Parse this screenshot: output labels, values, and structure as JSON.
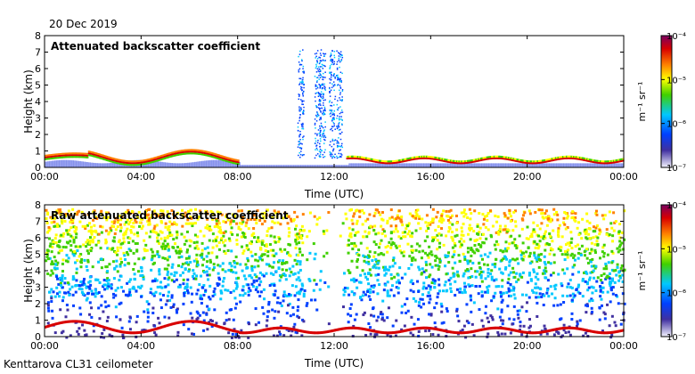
{
  "header": {
    "date": "20 Dec 2019"
  },
  "footer": {
    "site": "Kenttarova CL31 ceilometer"
  },
  "colorbar": {
    "unit_label": "m⁻¹ sr⁻¹",
    "ticks": [
      {
        "label": "10⁻⁴",
        "value": 0.0001
      },
      {
        "label": "10⁻⁵",
        "value": 1e-05
      },
      {
        "label": "10⁻⁶",
        "value": 1e-06
      },
      {
        "label": "10⁻⁷",
        "value": 1e-07
      }
    ],
    "colors": [
      "#7a0060",
      "#d80000",
      "#ff8000",
      "#ffff00",
      "#40d000",
      "#00c8ff",
      "#0040ff",
      "#4030a0",
      "#f4f4ff"
    ]
  },
  "chart_data": [
    {
      "type": "heatmap",
      "title": "Attenuated backscatter coefficient",
      "xlabel": "Time (UTC)",
      "ylabel": "Height (km)",
      "xlim": [
        "00:00",
        "24:00"
      ],
      "ylim": [
        0,
        8
      ],
      "x_ticks": [
        "00:00",
        "04:00",
        "08:00",
        "12:00",
        "16:00",
        "20:00",
        "00:00"
      ],
      "y_ticks": [
        "0",
        "1",
        "2",
        "3",
        "4",
        "5",
        "6",
        "7",
        "8"
      ],
      "grid": false,
      "features": [
        {
          "name": "low cloud layer",
          "time_start": "00:00",
          "time_end": "08:00",
          "height_km": [
            0.3,
            1.3
          ]
        },
        {
          "name": "precipitation streaks",
          "time_start": "10:30",
          "time_end": "12:30",
          "height_km": [
            0.5,
            7.5
          ]
        },
        {
          "name": "low cloud layer",
          "time_start": "12:30",
          "time_end": "24:00",
          "height_km": [
            0.0,
            1.0
          ]
        }
      ]
    },
    {
      "type": "heatmap",
      "title": "Raw attenuated backscatter coefficient",
      "xlabel": "Time (UTC)",
      "ylabel": "Height (km)",
      "xlim": [
        "00:00",
        "24:00"
      ],
      "ylim": [
        0,
        8
      ],
      "x_ticks": [
        "00:00",
        "04:00",
        "08:00",
        "12:00",
        "16:00",
        "20:00",
        "00:00"
      ],
      "y_ticks": [
        "0",
        "1",
        "2",
        "3",
        "4",
        "5",
        "6",
        "7",
        "8"
      ],
      "grid": false
    }
  ]
}
